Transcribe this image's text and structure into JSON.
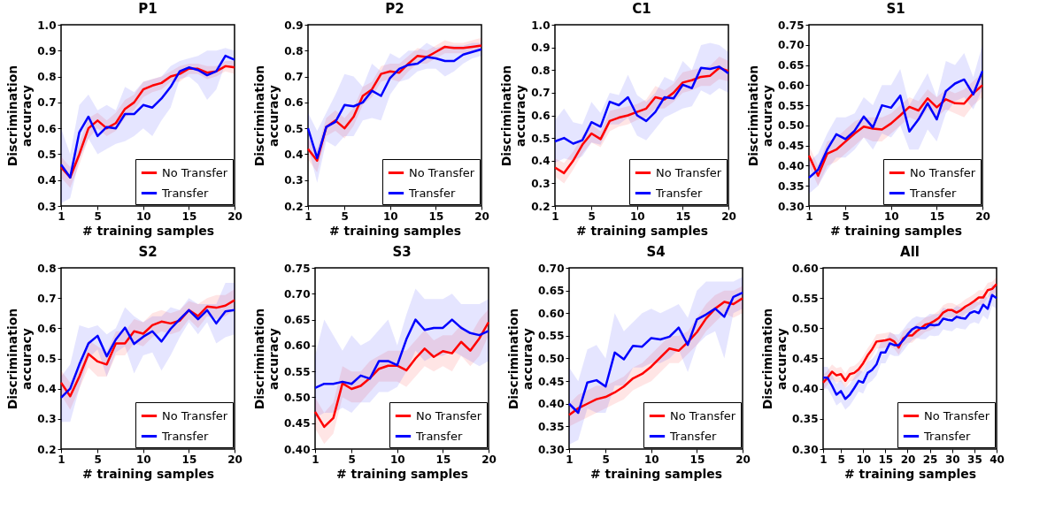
{
  "chart_data": [
    {
      "type": "line",
      "title": "P1",
      "xlabel": "# training samples",
      "ylabel": "Discrimination accuracy",
      "legend": "bottom right",
      "x": [
        1,
        2,
        3,
        4,
        5,
        6,
        7,
        8,
        9,
        10,
        11,
        12,
        13,
        14,
        15,
        16,
        17,
        18,
        19,
        20
      ],
      "xlim": [
        1,
        20
      ],
      "xticks": [
        1,
        5,
        10,
        15,
        20
      ],
      "ylim": [
        0.3,
        1.0
      ],
      "yticks": [
        0.3,
        0.4,
        0.5,
        0.6,
        0.7,
        0.8,
        0.9,
        {
          "value": 1.0,
          "label": "1.0"
        }
      ],
      "series": [
        {
          "name": "No Transfer",
          "color": "#ff0000",
          "values": [
            0.45,
            0.41,
            0.5,
            0.6,
            0.63,
            0.6,
            0.62,
            0.675,
            0.7,
            0.75,
            0.765,
            0.775,
            0.8,
            0.81,
            0.83,
            0.83,
            0.815,
            0.82,
            0.84,
            0.835
          ],
          "lower": [
            0.41,
            0.37,
            0.46,
            0.56,
            0.6,
            0.57,
            0.59,
            0.64,
            0.67,
            0.72,
            0.74,
            0.75,
            0.78,
            0.78,
            0.81,
            0.81,
            0.79,
            0.8,
            0.82,
            0.81
          ],
          "upper": [
            0.49,
            0.45,
            0.54,
            0.64,
            0.66,
            0.63,
            0.66,
            0.71,
            0.73,
            0.78,
            0.79,
            0.8,
            0.82,
            0.84,
            0.85,
            0.85,
            0.84,
            0.84,
            0.86,
            0.86
          ]
        },
        {
          "name": "Transfer",
          "color": "#0000ff",
          "values": [
            0.46,
            0.41,
            0.585,
            0.645,
            0.57,
            0.605,
            0.6,
            0.655,
            0.655,
            0.69,
            0.68,
            0.715,
            0.76,
            0.82,
            0.835,
            0.825,
            0.805,
            0.82,
            0.88,
            0.865
          ],
          "lower": [
            0.31,
            0.33,
            0.48,
            0.56,
            0.5,
            0.52,
            0.54,
            0.55,
            0.57,
            0.6,
            0.57,
            0.63,
            0.68,
            0.79,
            0.8,
            0.77,
            0.71,
            0.75,
            0.85,
            0.83
          ],
          "upper": [
            0.6,
            0.5,
            0.69,
            0.73,
            0.67,
            0.69,
            0.67,
            0.76,
            0.74,
            0.78,
            0.79,
            0.8,
            0.84,
            0.86,
            0.87,
            0.88,
            0.9,
            0.9,
            0.91,
            0.9
          ]
        }
      ]
    },
    {
      "type": "line",
      "title": "P2",
      "xlabel": "# training samples",
      "ylabel": "Discrimination accuracy",
      "legend": "bottom right",
      "x": [
        1,
        2,
        3,
        4,
        5,
        6,
        7,
        8,
        9,
        10,
        11,
        12,
        13,
        14,
        15,
        16,
        17,
        18,
        19,
        20
      ],
      "xlim": [
        1,
        20
      ],
      "xticks": [
        1,
        5,
        10,
        15,
        20
      ],
      "ylim": [
        0.2,
        0.9
      ],
      "yticks": [
        0.2,
        0.3,
        0.4,
        0.5,
        0.6,
        0.7,
        0.8,
        0.9
      ],
      "series": [
        {
          "name": "No Transfer",
          "color": "#ff0000",
          "values": [
            0.42,
            0.375,
            0.505,
            0.53,
            0.5,
            0.545,
            0.625,
            0.65,
            0.71,
            0.72,
            0.715,
            0.75,
            0.78,
            0.775,
            0.795,
            0.815,
            0.81,
            0.81,
            0.815,
            0.82
          ],
          "lower": [
            0.38,
            0.33,
            0.47,
            0.49,
            0.46,
            0.51,
            0.59,
            0.62,
            0.68,
            0.69,
            0.68,
            0.72,
            0.75,
            0.75,
            0.77,
            0.79,
            0.79,
            0.79,
            0.79,
            0.8
          ],
          "upper": [
            0.46,
            0.42,
            0.54,
            0.57,
            0.54,
            0.58,
            0.66,
            0.68,
            0.74,
            0.75,
            0.75,
            0.78,
            0.81,
            0.8,
            0.82,
            0.84,
            0.83,
            0.83,
            0.84,
            0.85
          ]
        },
        {
          "name": "Transfer",
          "color": "#0000ff",
          "values": [
            0.5,
            0.385,
            0.505,
            0.525,
            0.59,
            0.585,
            0.6,
            0.645,
            0.625,
            0.695,
            0.73,
            0.745,
            0.75,
            0.775,
            0.77,
            0.76,
            0.76,
            0.785,
            0.795,
            0.805
          ],
          "lower": [
            0.43,
            0.29,
            0.45,
            0.43,
            0.47,
            0.47,
            0.53,
            0.54,
            0.53,
            0.63,
            0.68,
            0.69,
            0.72,
            0.73,
            0.73,
            0.7,
            0.72,
            0.75,
            0.77,
            0.78
          ],
          "upper": [
            0.56,
            0.49,
            0.56,
            0.63,
            0.71,
            0.7,
            0.66,
            0.75,
            0.72,
            0.79,
            0.77,
            0.8,
            0.8,
            0.83,
            0.81,
            0.82,
            0.82,
            0.82,
            0.83,
            0.83
          ]
        }
      ]
    },
    {
      "type": "line",
      "title": "C1",
      "xlabel": "# training samples",
      "ylabel": "Discrimination accuracy",
      "legend": "bottom right",
      "x": [
        1,
        2,
        3,
        4,
        5,
        6,
        7,
        8,
        9,
        10,
        11,
        12,
        13,
        14,
        15,
        16,
        17,
        18,
        19,
        20
      ],
      "xlim": [
        1,
        20
      ],
      "xticks": [
        1,
        5,
        10,
        15,
        20
      ],
      "ylim": [
        0.2,
        1.0
      ],
      "yticks": [
        0.2,
        0.3,
        0.4,
        0.5,
        0.6,
        0.7,
        0.8,
        0.9,
        {
          "value": 1.0,
          "label": "1.0"
        }
      ],
      "series": [
        {
          "name": "No Transfer",
          "color": "#ff0000",
          "values": [
            0.37,
            0.345,
            0.4,
            0.47,
            0.52,
            0.495,
            0.575,
            0.59,
            0.6,
            0.615,
            0.63,
            0.68,
            0.67,
            0.7,
            0.745,
            0.755,
            0.77,
            0.775,
            0.81,
            0.795
          ],
          "lower": [
            0.33,
            0.3,
            0.36,
            0.43,
            0.48,
            0.46,
            0.53,
            0.55,
            0.56,
            0.58,
            0.59,
            0.63,
            0.63,
            0.66,
            0.7,
            0.71,
            0.73,
            0.73,
            0.76,
            0.75
          ],
          "upper": [
            0.41,
            0.39,
            0.44,
            0.51,
            0.56,
            0.53,
            0.62,
            0.63,
            0.64,
            0.65,
            0.67,
            0.73,
            0.71,
            0.74,
            0.79,
            0.8,
            0.81,
            0.82,
            0.86,
            0.84
          ]
        },
        {
          "name": "Transfer",
          "color": "#0000ff",
          "values": [
            0.485,
            0.5,
            0.475,
            0.49,
            0.57,
            0.55,
            0.66,
            0.645,
            0.68,
            0.6,
            0.575,
            0.615,
            0.68,
            0.675,
            0.735,
            0.72,
            0.81,
            0.805,
            0.815,
            0.785
          ],
          "lower": [
            0.39,
            0.41,
            0.4,
            0.42,
            0.48,
            0.47,
            0.56,
            0.56,
            0.59,
            0.51,
            0.49,
            0.54,
            0.59,
            0.61,
            0.63,
            0.64,
            0.71,
            0.69,
            0.72,
            0.7
          ],
          "upper": [
            0.58,
            0.63,
            0.57,
            0.56,
            0.66,
            0.61,
            0.7,
            0.69,
            0.78,
            0.69,
            0.66,
            0.7,
            0.77,
            0.75,
            0.84,
            0.8,
            0.91,
            0.92,
            0.91,
            0.88
          ]
        }
      ]
    },
    {
      "type": "line",
      "title": "S1",
      "xlabel": "# training samples",
      "ylabel": "Discrimination accuracy",
      "legend": "bottom right",
      "x": [
        1,
        2,
        3,
        4,
        5,
        6,
        7,
        8,
        9,
        10,
        11,
        12,
        13,
        14,
        15,
        16,
        17,
        18,
        19,
        20
      ],
      "xlim": [
        1,
        20
      ],
      "xticks": [
        1,
        5,
        10,
        15,
        20
      ],
      "ylim": [
        0.3,
        0.75
      ],
      "yticks": [
        {
          "value": 0.3,
          "label": "0.30"
        },
        0.35,
        {
          "value": 0.4,
          "label": "0.40"
        },
        0.45,
        {
          "value": 0.5,
          "label": "0.50"
        },
        0.55,
        {
          "value": 0.6,
          "label": "0.60"
        },
        0.65,
        {
          "value": 0.7,
          "label": "0.70"
        },
        0.75
      ],
      "series": [
        {
          "name": "No Transfer",
          "color": "#ff0000",
          "values": [
            0.425,
            0.375,
            0.43,
            0.44,
            0.46,
            0.48,
            0.497,
            0.492,
            0.49,
            0.505,
            0.525,
            0.546,
            0.537,
            0.567,
            0.545,
            0.565,
            0.555,
            0.554,
            0.58,
            0.6
          ],
          "lower": [
            0.4,
            0.35,
            0.4,
            0.41,
            0.43,
            0.45,
            0.47,
            0.46,
            0.46,
            0.48,
            0.5,
            0.52,
            0.51,
            0.54,
            0.52,
            0.54,
            0.53,
            0.52,
            0.55,
            0.57
          ],
          "upper": [
            0.45,
            0.4,
            0.46,
            0.47,
            0.49,
            0.51,
            0.52,
            0.52,
            0.52,
            0.53,
            0.55,
            0.57,
            0.56,
            0.59,
            0.57,
            0.59,
            0.58,
            0.59,
            0.61,
            0.63
          ]
        },
        {
          "name": "Transfer",
          "color": "#0000ff",
          "values": [
            0.37,
            0.39,
            0.44,
            0.478,
            0.466,
            0.487,
            0.522,
            0.495,
            0.55,
            0.544,
            0.574,
            0.485,
            0.515,
            0.555,
            0.515,
            0.585,
            0.604,
            0.614,
            0.577,
            0.635
          ],
          "lower": [
            0.33,
            0.35,
            0.39,
            0.42,
            0.42,
            0.44,
            0.47,
            0.44,
            0.48,
            0.47,
            0.5,
            0.44,
            0.44,
            0.49,
            0.46,
            0.53,
            0.56,
            0.57,
            0.54,
            0.59
          ],
          "upper": [
            0.41,
            0.43,
            0.48,
            0.52,
            0.52,
            0.53,
            0.57,
            0.55,
            0.6,
            0.6,
            0.64,
            0.55,
            0.59,
            0.63,
            0.57,
            0.66,
            0.65,
            0.68,
            0.62,
            0.7
          ]
        }
      ]
    },
    {
      "type": "line",
      "title": "S2",
      "xlabel": "# training samples",
      "ylabel": "Discrimination accuracy",
      "legend": "bottom right",
      "x": [
        1,
        2,
        3,
        4,
        5,
        6,
        7,
        8,
        9,
        10,
        11,
        12,
        13,
        14,
        15,
        16,
        17,
        18,
        19,
        20
      ],
      "xlim": [
        1,
        20
      ],
      "xticks": [
        1,
        5,
        10,
        15,
        20
      ],
      "ylim": [
        0.2,
        0.8
      ],
      "yticks": [
        0.2,
        0.3,
        0.4,
        0.5,
        0.6,
        0.7,
        0.8
      ],
      "series": [
        {
          "name": "No Transfer",
          "color": "#ff0000",
          "values": [
            0.42,
            0.375,
            0.44,
            0.515,
            0.49,
            0.48,
            0.55,
            0.55,
            0.59,
            0.582,
            0.61,
            0.622,
            0.616,
            0.625,
            0.66,
            0.64,
            0.672,
            0.668,
            0.675,
            0.693
          ],
          "lower": [
            0.38,
            0.33,
            0.4,
            0.47,
            0.44,
            0.44,
            0.51,
            0.51,
            0.55,
            0.54,
            0.57,
            0.59,
            0.58,
            0.59,
            0.63,
            0.6,
            0.64,
            0.63,
            0.64,
            0.66
          ],
          "upper": [
            0.46,
            0.42,
            0.48,
            0.56,
            0.54,
            0.52,
            0.59,
            0.59,
            0.63,
            0.62,
            0.65,
            0.66,
            0.65,
            0.66,
            0.69,
            0.68,
            0.7,
            0.71,
            0.71,
            0.73
          ]
        },
        {
          "name": "Transfer",
          "color": "#0000ff",
          "values": [
            0.37,
            0.4,
            0.48,
            0.55,
            0.575,
            0.507,
            0.563,
            0.602,
            0.548,
            0.572,
            0.59,
            0.556,
            0.598,
            0.63,
            0.66,
            0.63,
            0.66,
            0.616,
            0.656,
            0.66
          ],
          "lower": [
            0.29,
            0.29,
            0.4,
            0.5,
            0.53,
            0.44,
            0.52,
            0.54,
            0.45,
            0.51,
            0.52,
            0.46,
            0.51,
            0.57,
            0.62,
            0.58,
            0.62,
            0.55,
            0.57,
            0.58
          ],
          "upper": [
            0.44,
            0.48,
            0.61,
            0.6,
            0.61,
            0.58,
            0.6,
            0.67,
            0.64,
            0.62,
            0.64,
            0.64,
            0.67,
            0.66,
            0.7,
            0.68,
            0.68,
            0.68,
            0.75,
            0.75
          ]
        }
      ]
    },
    {
      "type": "line",
      "title": "S3",
      "xlabel": "# training samples",
      "ylabel": "Discrimination accuracy",
      "legend": "bottom right",
      "x": [
        1,
        2,
        3,
        4,
        5,
        6,
        7,
        8,
        9,
        10,
        11,
        12,
        13,
        14,
        15,
        16,
        17,
        18,
        19,
        20
      ],
      "xlim": [
        1,
        20
      ],
      "xticks": [
        1,
        5,
        10,
        15,
        20
      ],
      "ylim": [
        0.4,
        0.75
      ],
      "yticks": [
        {
          "value": 0.4,
          "label": "0.40"
        },
        0.45,
        {
          "value": 0.5,
          "label": "0.50"
        },
        0.55,
        {
          "value": 0.6,
          "label": "0.60"
        },
        0.65,
        {
          "value": 0.7,
          "label": "0.70"
        },
        0.75
      ],
      "series": [
        {
          "name": "No Transfer",
          "color": "#ff0000",
          "values": [
            0.472,
            0.443,
            0.46,
            0.527,
            0.516,
            0.522,
            0.537,
            0.555,
            0.561,
            0.561,
            0.552,
            0.575,
            0.594,
            0.578,
            0.589,
            0.585,
            0.607,
            0.59,
            0.614,
            0.645
          ],
          "lower": [
            0.44,
            0.41,
            0.43,
            0.5,
            0.49,
            0.49,
            0.51,
            0.53,
            0.53,
            0.53,
            0.52,
            0.54,
            0.56,
            0.55,
            0.56,
            0.55,
            0.58,
            0.56,
            0.58,
            0.62
          ],
          "upper": [
            0.5,
            0.47,
            0.49,
            0.56,
            0.55,
            0.55,
            0.57,
            0.58,
            0.59,
            0.59,
            0.59,
            0.61,
            0.63,
            0.61,
            0.62,
            0.62,
            0.64,
            0.62,
            0.65,
            0.67
          ]
        },
        {
          "name": "Transfer",
          "color": "#0000ff",
          "values": [
            0.518,
            0.526,
            0.526,
            0.53,
            0.526,
            0.542,
            0.536,
            0.57,
            0.57,
            0.562,
            0.612,
            0.65,
            0.63,
            0.634,
            0.634,
            0.65,
            0.634,
            0.624,
            0.62,
            0.628
          ],
          "lower": [
            0.46,
            0.47,
            0.47,
            0.48,
            0.47,
            0.49,
            0.49,
            0.51,
            0.51,
            0.52,
            0.55,
            0.59,
            0.57,
            0.58,
            0.58,
            0.59,
            0.58,
            0.57,
            0.56,
            0.57
          ],
          "upper": [
            0.58,
            0.65,
            0.62,
            0.59,
            0.62,
            0.6,
            0.61,
            0.63,
            0.65,
            0.6,
            0.66,
            0.71,
            0.69,
            0.69,
            0.69,
            0.7,
            0.68,
            0.68,
            0.68,
            0.69
          ]
        }
      ]
    },
    {
      "type": "line",
      "title": "S4",
      "xlabel": "# training samples",
      "ylabel": "Discrimination accuracy",
      "legend": "bottom right",
      "x": [
        1,
        2,
        3,
        4,
        5,
        6,
        7,
        8,
        9,
        10,
        11,
        12,
        13,
        14,
        15,
        16,
        17,
        18,
        19,
        20
      ],
      "xlim": [
        1,
        20
      ],
      "xticks": [
        1,
        5,
        10,
        15,
        20
      ],
      "ylim": [
        0.3,
        0.7
      ],
      "yticks": [
        {
          "value": 0.3,
          "label": "0.30"
        },
        0.35,
        {
          "value": 0.4,
          "label": "0.40"
        },
        0.45,
        {
          "value": 0.5,
          "label": "0.50"
        },
        0.55,
        {
          "value": 0.6,
          "label": "0.60"
        },
        0.65,
        {
          "value": 0.7,
          "label": "0.70"
        }
      ],
      "series": [
        {
          "name": "No Transfer",
          "color": "#ff0000",
          "values": [
            0.375,
            0.39,
            0.4,
            0.41,
            0.415,
            0.425,
            0.438,
            0.456,
            0.466,
            0.482,
            0.502,
            0.522,
            0.517,
            0.536,
            0.558,
            0.588,
            0.61,
            0.625,
            0.62,
            0.633
          ],
          "lower": [
            0.35,
            0.36,
            0.37,
            0.38,
            0.39,
            0.4,
            0.41,
            0.43,
            0.44,
            0.45,
            0.47,
            0.49,
            0.49,
            0.51,
            0.53,
            0.56,
            0.58,
            0.6,
            0.59,
            0.6
          ],
          "upper": [
            0.4,
            0.42,
            0.43,
            0.44,
            0.44,
            0.45,
            0.46,
            0.48,
            0.49,
            0.51,
            0.53,
            0.55,
            0.55,
            0.56,
            0.59,
            0.62,
            0.64,
            0.65,
            0.65,
            0.66
          ]
        },
        {
          "name": "Transfer",
          "color": "#0000ff",
          "values": [
            0.4,
            0.38,
            0.447,
            0.452,
            0.438,
            0.513,
            0.498,
            0.528,
            0.526,
            0.545,
            0.542,
            0.548,
            0.568,
            0.53,
            0.586,
            0.597,
            0.61,
            0.592,
            0.636,
            0.645
          ],
          "lower": [
            0.31,
            0.32,
            0.39,
            0.38,
            0.38,
            0.44,
            0.44,
            0.48,
            0.48,
            0.49,
            0.49,
            0.5,
            0.52,
            0.47,
            0.53,
            0.55,
            0.56,
            0.5,
            0.6,
            0.61
          ],
          "upper": [
            0.48,
            0.45,
            0.52,
            0.53,
            0.5,
            0.6,
            0.56,
            0.58,
            0.6,
            0.61,
            0.6,
            0.61,
            0.62,
            0.59,
            0.65,
            0.67,
            0.67,
            0.67,
            0.67,
            0.68
          ]
        }
      ]
    },
    {
      "type": "line",
      "title": "All",
      "xlabel": "# training samples",
      "ylabel": "Discrimination accuracy",
      "legend": "bottom right",
      "x": [
        1,
        2,
        3,
        4,
        5,
        6,
        7,
        8,
        9,
        10,
        11,
        12,
        13,
        14,
        15,
        16,
        17,
        18,
        19,
        20,
        21,
        22,
        23,
        24,
        25,
        26,
        27,
        28,
        29,
        30,
        31,
        32,
        33,
        34,
        35,
        36,
        37,
        38,
        39,
        40
      ],
      "xlim": [
        1,
        40
      ],
      "xticks": [
        1,
        5,
        10,
        15,
        20,
        25,
        30,
        35,
        40
      ],
      "ylim": [
        0.3,
        0.6
      ],
      "yticks": [
        {
          "value": 0.3,
          "label": "0.30"
        },
        0.35,
        {
          "value": 0.4,
          "label": "0.40"
        },
        0.45,
        {
          "value": 0.5,
          "label": "0.50"
        },
        0.55,
        {
          "value": 0.6,
          "label": "0.60"
        }
      ],
      "series": [
        {
          "name": "No Transfer",
          "color": "#ff0000",
          "values": [
            0.41,
            0.418,
            0.428,
            0.422,
            0.424,
            0.413,
            0.424,
            0.426,
            0.432,
            0.442,
            0.455,
            0.465,
            0.478,
            0.479,
            0.48,
            0.482,
            0.478,
            0.468,
            0.483,
            0.488,
            0.488,
            0.495,
            0.5,
            0.506,
            0.508,
            0.512,
            0.517,
            0.526,
            0.53,
            0.53,
            0.526,
            0.53,
            0.536,
            0.54,
            0.545,
            0.551,
            0.551,
            0.563,
            0.565,
            0.573
          ],
          "lower": [
            0.398,
            0.406,
            0.416,
            0.41,
            0.412,
            0.401,
            0.412,
            0.414,
            0.42,
            0.43,
            0.443,
            0.453,
            0.466,
            0.467,
            0.468,
            0.47,
            0.466,
            0.456,
            0.471,
            0.476,
            0.476,
            0.483,
            0.488,
            0.494,
            0.496,
            0.5,
            0.505,
            0.514,
            0.518,
            0.518,
            0.514,
            0.518,
            0.524,
            0.528,
            0.533,
            0.539,
            0.539,
            0.551,
            0.553,
            0.561
          ],
          "upper": [
            0.422,
            0.43,
            0.44,
            0.434,
            0.436,
            0.425,
            0.436,
            0.438,
            0.444,
            0.454,
            0.467,
            0.477,
            0.49,
            0.491,
            0.492,
            0.494,
            0.49,
            0.48,
            0.495,
            0.5,
            0.5,
            0.507,
            0.512,
            0.518,
            0.52,
            0.524,
            0.529,
            0.538,
            0.542,
            0.542,
            0.538,
            0.542,
            0.548,
            0.552,
            0.557,
            0.563,
            0.563,
            0.575,
            0.577,
            0.585
          ]
        },
        {
          "name": "Transfer",
          "color": "#0000ff",
          "values": [
            0.418,
            0.418,
            0.405,
            0.39,
            0.396,
            0.383,
            0.39,
            0.401,
            0.413,
            0.41,
            0.426,
            0.431,
            0.44,
            0.46,
            0.46,
            0.475,
            0.472,
            0.472,
            0.48,
            0.49,
            0.498,
            0.502,
            0.5,
            0.5,
            0.506,
            0.505,
            0.506,
            0.516,
            0.514,
            0.513,
            0.519,
            0.517,
            0.516,
            0.525,
            0.528,
            0.525,
            0.539,
            0.532,
            0.555,
            0.55
          ],
          "lower": [
            0.4,
            0.4,
            0.387,
            0.372,
            0.378,
            0.365,
            0.372,
            0.383,
            0.395,
            0.392,
            0.408,
            0.413,
            0.422,
            0.442,
            0.442,
            0.457,
            0.454,
            0.454,
            0.462,
            0.472,
            0.48,
            0.484,
            0.482,
            0.482,
            0.488,
            0.487,
            0.488,
            0.498,
            0.496,
            0.495,
            0.501,
            0.499,
            0.498,
            0.507,
            0.51,
            0.507,
            0.521,
            0.514,
            0.537,
            0.532
          ],
          "upper": [
            0.436,
            0.436,
            0.423,
            0.408,
            0.414,
            0.401,
            0.408,
            0.419,
            0.431,
            0.428,
            0.444,
            0.449,
            0.458,
            0.478,
            0.478,
            0.493,
            0.49,
            0.49,
            0.498,
            0.508,
            0.516,
            0.52,
            0.518,
            0.518,
            0.524,
            0.523,
            0.524,
            0.534,
            0.532,
            0.531,
            0.537,
            0.535,
            0.534,
            0.543,
            0.546,
            0.543,
            0.557,
            0.55,
            0.573,
            0.568
          ]
        }
      ]
    }
  ]
}
